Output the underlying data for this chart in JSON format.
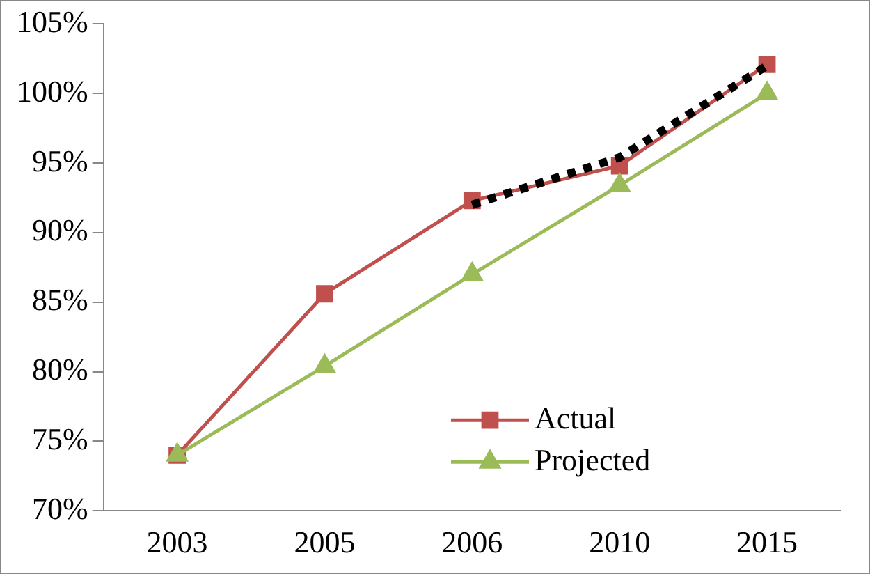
{
  "chart_data": {
    "type": "line",
    "categories": [
      "2003",
      "2005",
      "2006",
      "2010",
      "2015"
    ],
    "series": [
      {
        "name": "Actual",
        "color": "#c0504d",
        "marker": "square",
        "values": [
          74,
          85.6,
          92.3,
          94.8,
          102.1
        ]
      },
      {
        "name": "Projected",
        "color": "#9bbb59",
        "marker": "triangle",
        "values": [
          74,
          80.4,
          87,
          93.4,
          100
        ]
      },
      {
        "color": "#000000",
        "marker": "none",
        "line_style": "dotted",
        "values": [
          null,
          null,
          92,
          95.4,
          102
        ]
      }
    ],
    "ylim": [
      70,
      105
    ],
    "yticks": [
      {
        "value": 70,
        "label": "70%"
      },
      {
        "value": 75,
        "label": "75%"
      },
      {
        "value": 80,
        "label": "80%"
      },
      {
        "value": 85,
        "label": "85%"
      },
      {
        "value": 90,
        "label": "90%"
      },
      {
        "value": 95,
        "label": "95%"
      },
      {
        "value": 100,
        "label": "100%"
      },
      {
        "value": 105,
        "label": "105%"
      }
    ],
    "grid": false,
    "legend": "bottom right"
  }
}
